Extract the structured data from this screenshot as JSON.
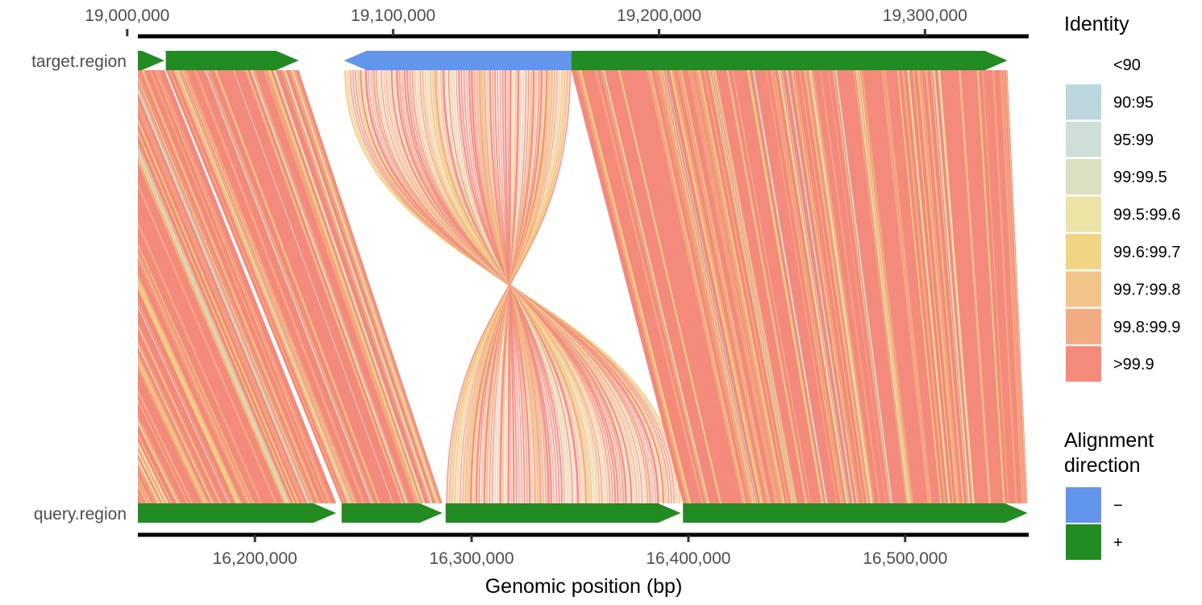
{
  "chart_data": {
    "type": "synteny",
    "xlabel": "Genomic position (bp)",
    "target": {
      "name": "target.region",
      "range": [
        19004000,
        19339000
      ],
      "ticks": [
        19000000,
        19100000,
        19200000,
        19300000
      ],
      "tick_labels": [
        "19,000,000",
        "19,100,000",
        "19,200,000",
        "19,300,000"
      ],
      "segments": [
        {
          "start": 18920000,
          "end": 19014000,
          "strand": "+"
        },
        {
          "start": 19014500,
          "end": 19064500,
          "strand": "+"
        },
        {
          "start": 19081500,
          "end": 19167000,
          "strand": "-"
        },
        {
          "start": 19167000,
          "end": 19331000,
          "strand": "+"
        }
      ]
    },
    "query": {
      "name": "query.region",
      "range": [
        16146000,
        16557000
      ],
      "ticks": [
        16200000,
        16300000,
        16400000,
        16500000
      ],
      "tick_labels": [
        "16,200,000",
        "16,300,000",
        "16,400,000",
        "16,500,000"
      ],
      "segments": [
        {
          "start": 16146000,
          "end": 16237500,
          "strand": "+"
        },
        {
          "start": 16240000,
          "end": 16286500,
          "strand": "+"
        },
        {
          "start": 16288000,
          "end": 16396500,
          "strand": "+"
        },
        {
          "start": 16397500,
          "end": 16556500,
          "strand": "+"
        }
      ]
    },
    "alignments": [
      {
        "target": [
          18920000,
          19014000
        ],
        "query": [
          16146000,
          16237500
        ],
        "direction": "+",
        "identity": ">99.9"
      },
      {
        "target": [
          19014500,
          19064500
        ],
        "query": [
          16240000,
          16286500
        ],
        "direction": "+",
        "identity": ">99.9"
      },
      {
        "target": [
          19081500,
          19167000
        ],
        "query": [
          16288000,
          16396500
        ],
        "direction": "-",
        "identity": ">99.9"
      },
      {
        "target": [
          19167000,
          19331000
        ],
        "query": [
          16397500,
          16556500
        ],
        "direction": "+",
        "identity": ">99.9"
      }
    ],
    "legend": {
      "identity": {
        "title": "Identity",
        "items": [
          {
            "label": "<90",
            "color": "#ffffff"
          },
          {
            "label": "90:95",
            "color": "#bcd7dd"
          },
          {
            "label": "95:99",
            "color": "#cfdfd7"
          },
          {
            "label": "99:99.5",
            "color": "#dbe0c1"
          },
          {
            "label": "99.5:99.6",
            "color": "#ece3a6"
          },
          {
            "label": "99.6:99.7",
            "color": "#f1d585"
          },
          {
            "label": "99.7:99.8",
            "color": "#f3c488"
          },
          {
            "label": "99.8:99.9",
            "color": "#f3ab83"
          },
          {
            "label": ">99.9",
            "color": "#f38a7c"
          }
        ]
      },
      "direction": {
        "title_lines": [
          "Alignment",
          "direction"
        ],
        "items": [
          {
            "label": "−",
            "color": "#6495ed"
          },
          {
            "label": "+",
            "color": "#228b22"
          }
        ]
      },
      "placement": "right"
    }
  }
}
